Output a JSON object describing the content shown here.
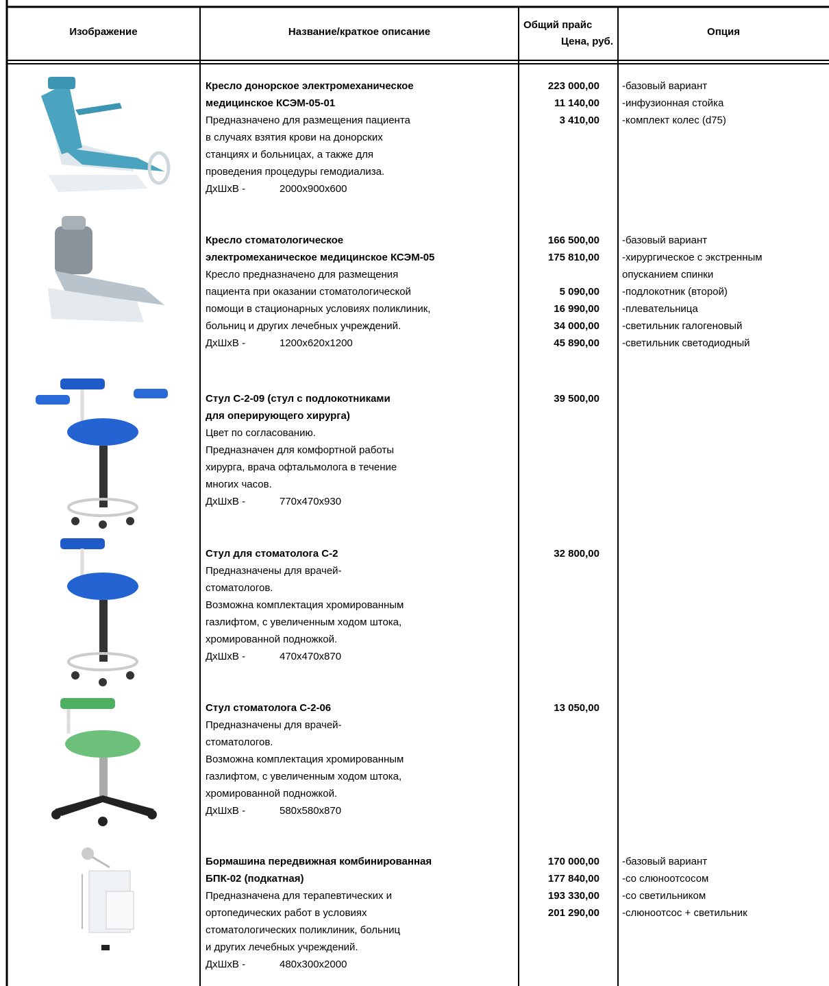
{
  "header": {
    "columns": {
      "image": "Изображение",
      "name": "Название/краткое описание",
      "price": [
        "Общий прайс",
        "Цена, руб."
      ],
      "option": "Опция"
    }
  },
  "rows": [
    {
      "title": [
        "Кресло донорское электромеханическое",
        "медицинское КСЭМ-05-01"
      ],
      "description": [
        "Предназначено для размещения пациента",
        "в случаях взятия крови на донорских",
        "станциях и больницах, а также для",
        "проведения процедуры гемодиализа."
      ],
      "dimensions_label": "ДхШхВ -",
      "dimensions": "2000x900x600",
      "prices": [
        "223 000,00",
        "11 140,00",
        "3 410,00"
      ],
      "options": [
        [
          "-базовый вариант"
        ],
        [
          "-инфузионная стойка"
        ],
        [
          "-комплект колес (d75)"
        ]
      ]
    },
    {
      "title": [
        "Кресло стоматологическое",
        "электромеханическое медицинское КСЭМ-05"
      ],
      "description": [
        "Кресло предназначено для размещения",
        "пациента при оказании стоматологической",
        "помощи в стационарных условиях поликлиник,",
        "больниц и других лечебных учреждений."
      ],
      "dimensions_label": "ДхШхВ -",
      "dimensions": "1200x620x1200",
      "prices": [
        "166 500,00",
        "175 810,00",
        "5 090,00",
        "16 990,00",
        "34 000,00",
        "45 890,00"
      ],
      "options": [
        [
          "-базовый вариант"
        ],
        [
          "-хирургическое с экстренным",
          "опусканием спинки"
        ],
        [
          "-подлокотник (второй)"
        ],
        [
          "-плевательница"
        ],
        [
          "-светильник галогеновый"
        ],
        [
          "-светильник светодиодный"
        ]
      ]
    },
    {
      "title": [
        "Стул С-2-09 (стул с подлокотниками",
        "для оперирующего хирурга)"
      ],
      "description": [
        "Цвет по согласованию.",
        "Предназначен для комфортной работы",
        "хирурга, врача офтальмолога в течение",
        "многих часов."
      ],
      "dimensions_label": "ДхШхВ -",
      "dimensions": "770x470x930",
      "prices": [
        "39 500,00"
      ],
      "options": []
    },
    {
      "title": [
        "Стул для стоматолога С-2"
      ],
      "description": [
        "Предназначены для врачей-",
        "стоматологов.",
        "Возможна комплектация хромированным",
        "газлифтом, с увеличенным ходом штока,",
        "хромированной подножкой."
      ],
      "dimensions_label": "ДхШхВ -",
      "dimensions": "470x470x870",
      "prices": [
        "32 800,00"
      ],
      "options": []
    },
    {
      "title": [
        "Стул стоматолога С-2-06"
      ],
      "description": [
        "Предназначены для врачей-",
        "стоматологов.",
        "Возможна комплектация хромированным",
        "газлифтом, с увеличенным ходом штока,",
        "хромированной подножкой."
      ],
      "dimensions_label": "ДхШхВ -",
      "dimensions": "580x580x870",
      "prices": [
        "13 050,00"
      ],
      "options": []
    },
    {
      "title": [
        "Бормашина передвижная комбинированная",
        "БПК-02 (подкатная)"
      ],
      "description": [
        "Предназначена для терапевтических и",
        "ортопедических работ в условиях",
        "стоматологических поликлиник, больниц",
        "и других лечебных учреждений."
      ],
      "dimensions_label": "ДхШхВ -",
      "dimensions": "480x300x2000",
      "prices": [
        "170 000,00",
        "177 840,00",
        "193 330,00",
        "201 290,00"
      ],
      "options": [
        [
          "-базовый вариант"
        ],
        [
          "-со слюноотсосом"
        ],
        [
          "-со светильником"
        ],
        [
          "-слюноотсос + светильник"
        ]
      ]
    }
  ]
}
